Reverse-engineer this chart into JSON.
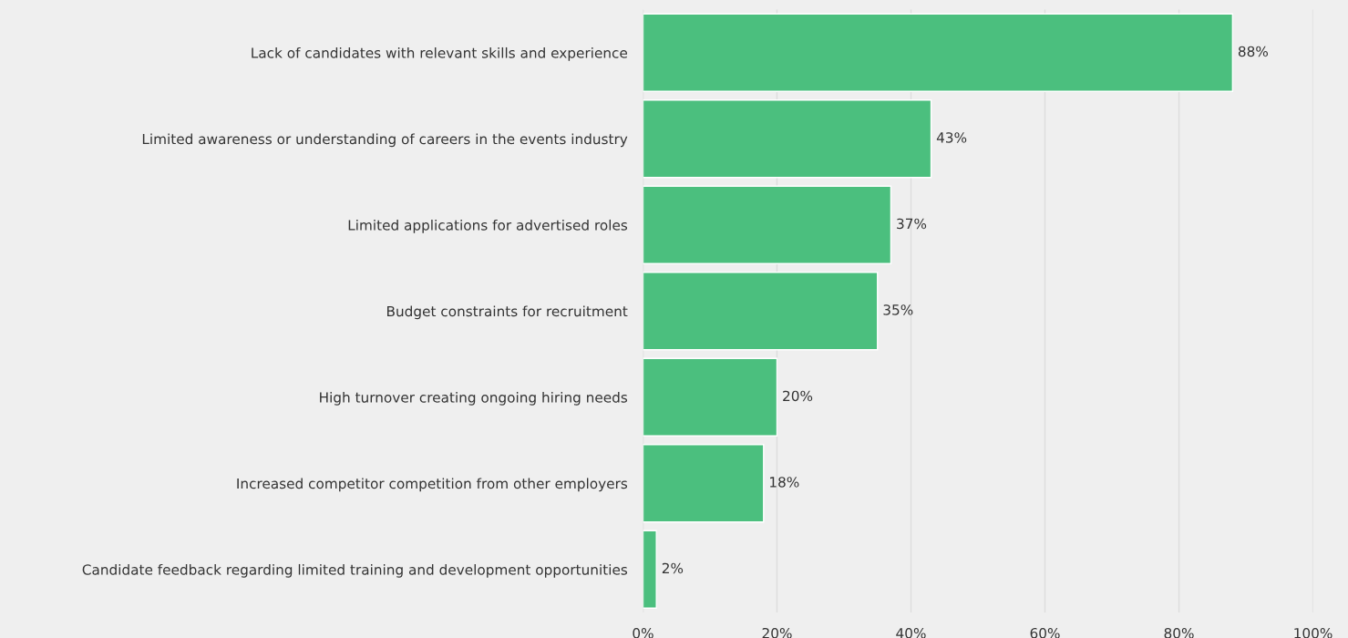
{
  "chart_data": {
    "type": "bar",
    "orientation": "horizontal",
    "categories": [
      "Lack of candidates with relevant skills and experience",
      "Limited awareness or understanding of careers in the events industry",
      "Limited applications for advertised roles",
      "Budget constraints for recruitment",
      "High turnover creating ongoing hiring needs",
      "Increased competitor competition from other employers",
      "Candidate feedback regarding limited training and development opportunities"
    ],
    "values": [
      88,
      43,
      37,
      35,
      20,
      18,
      2
    ],
    "value_labels": [
      "88%",
      "43%",
      "37%",
      "35%",
      "20%",
      "18%",
      "2%"
    ],
    "color": "#4bbf7e",
    "xlim": [
      0,
      100
    ],
    "xticks": [
      {
        "value": 0,
        "label": "0%"
      },
      {
        "value": 20,
        "label": "20%"
      },
      {
        "value": 40,
        "label": "40%"
      },
      {
        "value": 60,
        "label": "60%"
      },
      {
        "value": 80,
        "label": "80%"
      },
      {
        "value": 100,
        "label": "100%"
      }
    ],
    "grid": "x",
    "legend": false
  }
}
